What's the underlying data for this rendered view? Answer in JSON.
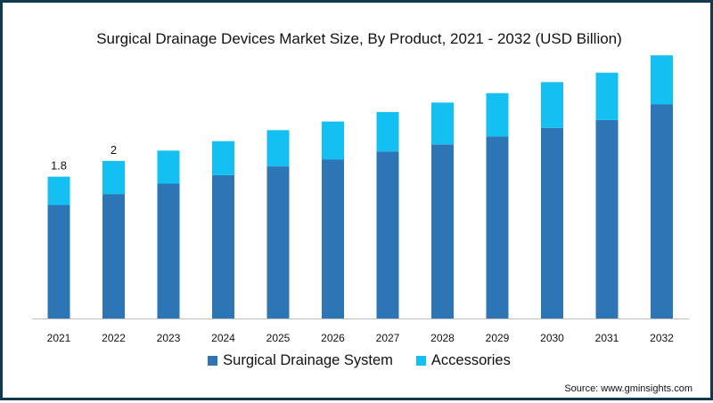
{
  "chart_data": {
    "type": "bar",
    "stacked": true,
    "title": "Surgical Drainage Devices Market Size, By Product, 2021 - 2032 (USD Billion)",
    "categories": [
      "2021",
      "2022",
      "2023",
      "2024",
      "2025",
      "2026",
      "2027",
      "2028",
      "2029",
      "2030",
      "2031",
      "2032"
    ],
    "series": [
      {
        "name": "Surgical Drainage System",
        "color": "#2e75b6",
        "values": [
          1.44,
          1.58,
          1.71,
          1.82,
          1.93,
          2.02,
          2.12,
          2.21,
          2.31,
          2.42,
          2.52,
          2.72
        ]
      },
      {
        "name": "Accessories",
        "color": "#14c0f2",
        "values": [
          0.36,
          0.42,
          0.42,
          0.43,
          0.46,
          0.48,
          0.5,
          0.53,
          0.55,
          0.58,
          0.6,
          0.62
        ]
      }
    ],
    "data_labels": [
      {
        "category": "2021",
        "text": "1.8"
      },
      {
        "category": "2022",
        "text": "2"
      }
    ],
    "ylim": [
      0,
      3.5
    ],
    "grid": false,
    "legend_position": "bottom"
  },
  "source": "Source: www.gminsights.com"
}
